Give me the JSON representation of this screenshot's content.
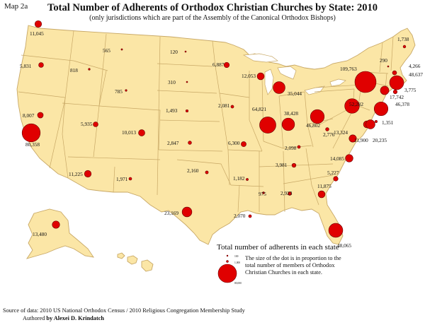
{
  "map_label": "Map 2a",
  "title": "Total Number of Adherents of Orthodox Christian Churches by State: 2010",
  "subtitle": "(only jurisdictions which are part of the Assembly of the Canonical Orthodox Bishops)",
  "legend": {
    "title": "Total number of adherents in each state",
    "description": "The size of the dot is in proportion to the total number of members of Orthodox Christian Churches in each state.",
    "samples": [
      {
        "label": "100",
        "value": 100
      },
      {
        "label": "1,000",
        "value": 1000
      },
      {
        "label": "80,000",
        "value": 80000
      }
    ]
  },
  "footer": {
    "source": "Source of data: 2010 US National Orthodox Census / 2010 Religious Congregation Membership Study",
    "authored_prefix": "Authored",
    "author": "by Alexei D. Krindatch"
  },
  "colors": {
    "land": "#fbe6a6",
    "border": "#c8a866",
    "dot": "#e00000",
    "water": "#ffffff"
  },
  "states": [
    {
      "label": "11,045",
      "value": 11045
    },
    {
      "label": "5,831",
      "value": 5831
    },
    {
      "label": "80,358",
      "value": 80358
    },
    {
      "label": "8,007",
      "value": 8007
    },
    {
      "label": "818",
      "value": 818
    },
    {
      "label": "565",
      "value": 565
    },
    {
      "label": "785",
      "value": 785
    },
    {
      "label": "5,935",
      "value": 5935
    },
    {
      "label": "11,225",
      "value": 11225
    },
    {
      "label": "1,971",
      "value": 1971
    },
    {
      "label": "10,013",
      "value": 10013
    },
    {
      "label": "120",
      "value": 120
    },
    {
      "label": "310",
      "value": 310
    },
    {
      "label": "1,493",
      "value": 1493
    },
    {
      "label": "2,847",
      "value": 2847
    },
    {
      "label": "2,160",
      "value": 2160
    },
    {
      "label": "23,169",
      "value": 23169
    },
    {
      "label": "6,887",
      "value": 6887
    },
    {
      "label": "2,081",
      "value": 2081
    },
    {
      "label": "6,300",
      "value": 6300
    },
    {
      "label": "1,182",
      "value": 1182
    },
    {
      "label": "2,070",
      "value": 2070
    },
    {
      "label": "12,053",
      "value": 12053
    },
    {
      "label": "64,821",
      "value": 64821
    },
    {
      "label": "35,044",
      "value": 35044
    },
    {
      "label": "38,428",
      "value": 38428
    },
    {
      "label": "46,802",
      "value": 46802
    },
    {
      "label": "2,098",
      "value": 2098
    },
    {
      "label": "3,981",
      "value": 3981
    },
    {
      "label": "975",
      "value": 975
    },
    {
      "label": "2,923",
      "value": 2923
    },
    {
      "label": "11,875",
      "value": 11875
    },
    {
      "label": "48,065",
      "value": 48065
    },
    {
      "label": "5,227",
      "value": 5227
    },
    {
      "label": "14,085",
      "value": 14085
    },
    {
      "label": "13,324",
      "value": 13324
    },
    {
      "label": "2,776",
      "value": 2776
    },
    {
      "label": "52,282",
      "value": 52282
    },
    {
      "label": "109,763",
      "value": 109763
    },
    {
      "label": "1,738",
      "value": 1738
    },
    {
      "label": "290",
      "value": 290
    },
    {
      "label": "4,266",
      "value": 4266
    },
    {
      "label": "48,637",
      "value": 48637
    },
    {
      "label": "3,775",
      "value": 3775
    },
    {
      "label": "17,742",
      "value": 17742
    },
    {
      "label": "46,378",
      "value": 46378
    },
    {
      "label": "1,351",
      "value": 1351
    },
    {
      "label": "11,900",
      "value": 11900
    },
    {
      "label": "20,235",
      "value": 20235
    },
    {
      "label": "13,480",
      "value": 13480
    }
  ]
}
